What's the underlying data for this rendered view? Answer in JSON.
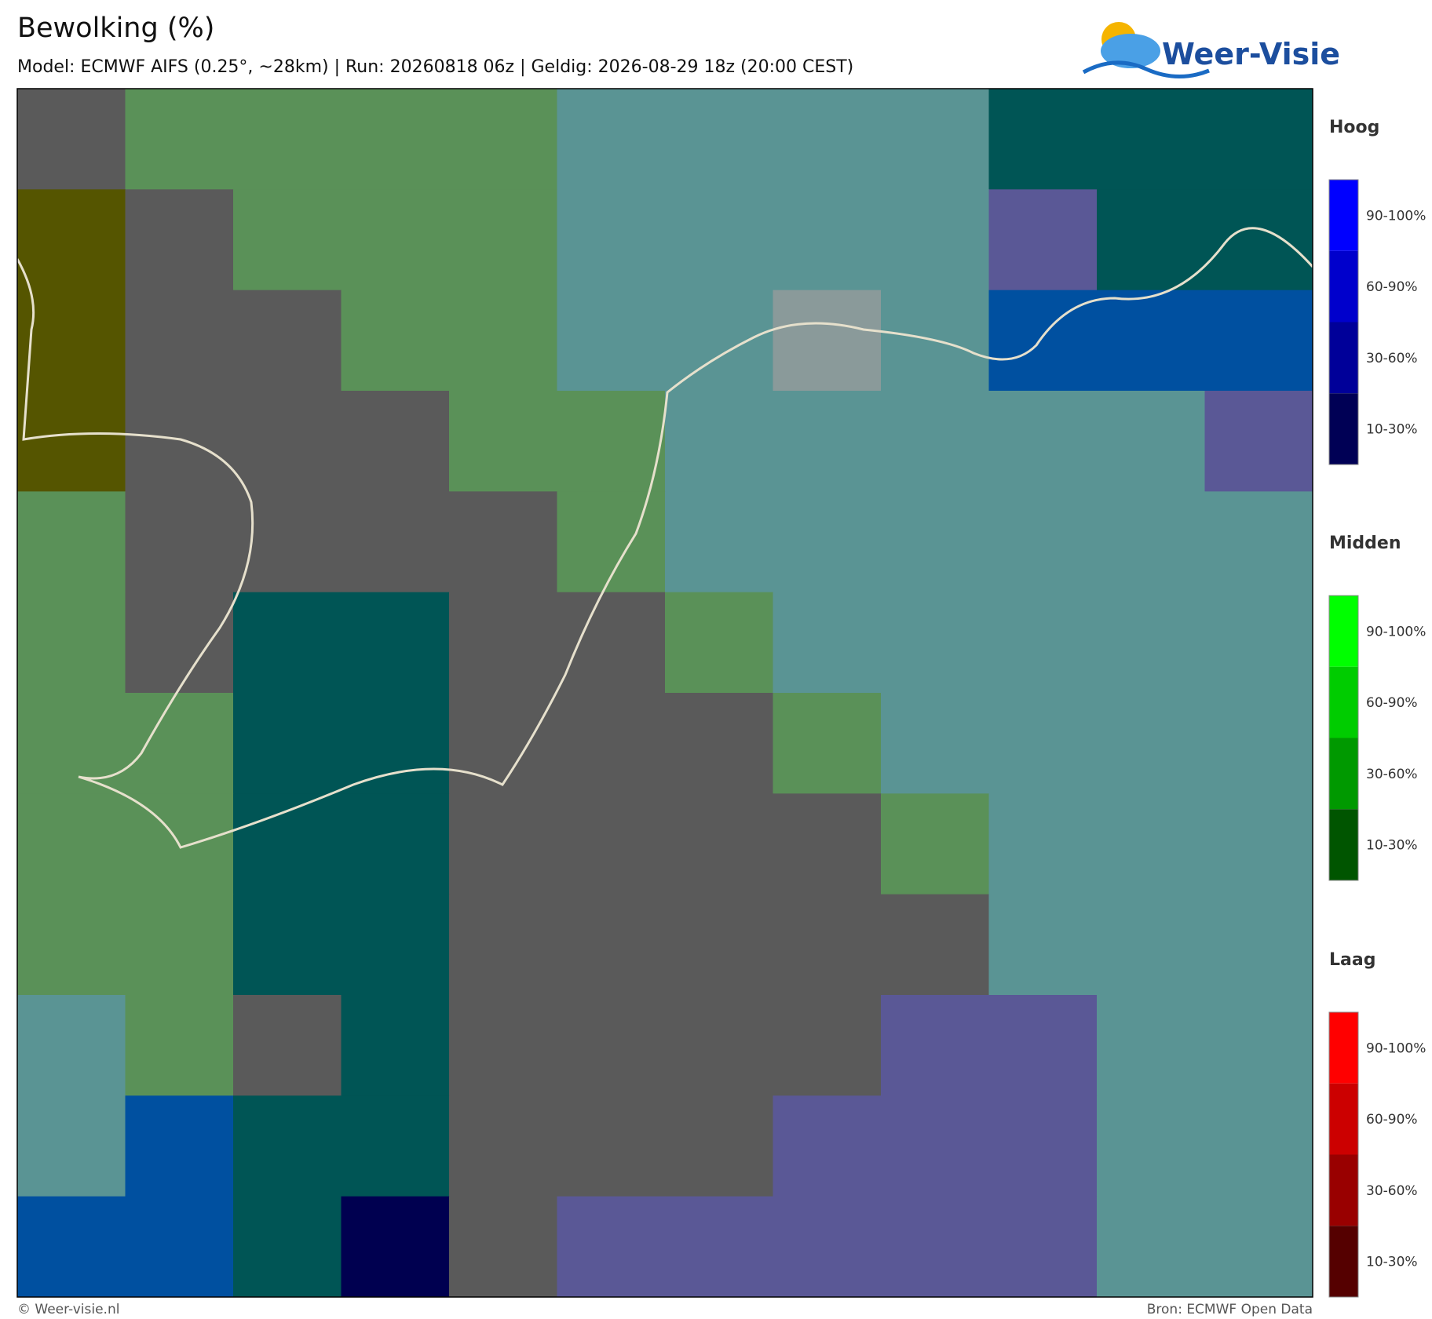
{
  "header": {
    "title": "Bewolking (%)",
    "subtitle": "Model: ECMWF AIFS (0.25°, ~28km)  |  Run: 20260818 06z  |  Geldig: 2026-08-29 18z (20:00 CEST)"
  },
  "logo": {
    "text": "Weer-Visie"
  },
  "legends": [
    {
      "title": "Hoog",
      "items": [
        {
          "label": "90-100%",
          "color": "#0000ff"
        },
        {
          "label": "60-90%",
          "color": "#0000cc"
        },
        {
          "label": "30-60%",
          "color": "#000099"
        },
        {
          "label": "10-30%",
          "color": "#000055"
        }
      ]
    },
    {
      "title": "Midden",
      "items": [
        {
          "label": "90-100%",
          "color": "#00ff00"
        },
        {
          "label": "60-90%",
          "color": "#00cc00"
        },
        {
          "label": "30-60%",
          "color": "#009900"
        },
        {
          "label": "10-30%",
          "color": "#005500"
        }
      ]
    },
    {
      "title": "Laag",
      "items": [
        {
          "label": "90-100%",
          "color": "#ff0000"
        },
        {
          "label": "60-90%",
          "color": "#cc0000"
        },
        {
          "label": "30-60%",
          "color": "#990000"
        },
        {
          "label": "10-30%",
          "color": "#550000"
        }
      ]
    }
  ],
  "footer": {
    "left": "© Weer-visie.nl",
    "right": "Bron: ECMWF Open Data"
  }
}
